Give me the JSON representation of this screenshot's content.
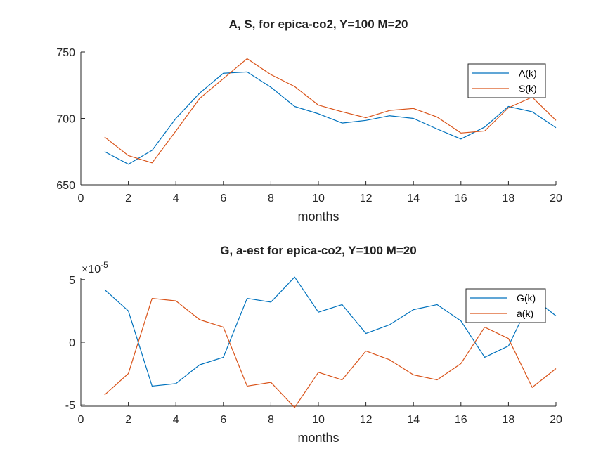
{
  "chart_data": [
    {
      "type": "line",
      "title": "A, S, for epica-co2, Y=100 M=20",
      "xlabel": "months",
      "ylabel": "",
      "xlim": [
        0,
        20
      ],
      "ylim": [
        650,
        750
      ],
      "xticks": [
        0,
        2,
        4,
        6,
        8,
        10,
        12,
        14,
        16,
        18,
        20
      ],
      "yticks": [
        650,
        700,
        750
      ],
      "ytick_labels": [
        "650",
        "700",
        "750"
      ],
      "exponent_label": "",
      "exponent_power": "",
      "grid": false,
      "legend_position": "top-right",
      "x": [
        1,
        2,
        3,
        4,
        5,
        6,
        7,
        8,
        9,
        10,
        11,
        12,
        13,
        14,
        15,
        16,
        17,
        18,
        19,
        20
      ],
      "series": [
        {
          "name": "A(k)",
          "color": "#0072BD",
          "values": [
            675,
            665.5,
            676,
            700,
            719,
            734,
            735,
            723.5,
            709,
            703.5,
            696.5,
            698.5,
            702,
            700,
            692,
            684.5,
            693.5,
            709,
            705,
            693
          ]
        },
        {
          "name": "S(k)",
          "color": "#D95319",
          "values": [
            686,
            672,
            666.5,
            690.5,
            715,
            730,
            745,
            733,
            724,
            710,
            705,
            700.5,
            706,
            707.5,
            701,
            689,
            690.5,
            708,
            716,
            698.5
          ]
        }
      ]
    },
    {
      "type": "line",
      "title": "G, a-est for epica-co2, Y=100 M=20",
      "xlabel": "months",
      "ylabel": "",
      "xlim": [
        0,
        20
      ],
      "ylim": [
        -5.1,
        5.1
      ],
      "xticks": [
        0,
        2,
        4,
        6,
        8,
        10,
        12,
        14,
        16,
        18,
        20
      ],
      "yticks": [
        -5,
        0,
        5
      ],
      "ytick_labels": [
        "-5",
        "0",
        "5"
      ],
      "exponent_label": "×10",
      "exponent_power": "-5",
      "grid": false,
      "legend_position": "top-right",
      "x": [
        1,
        2,
        3,
        4,
        5,
        6,
        7,
        8,
        9,
        10,
        11,
        12,
        13,
        14,
        15,
        16,
        17,
        18,
        19,
        20
      ],
      "series": [
        {
          "name": "G(k)",
          "color": "#0072BD",
          "values": [
            4.2,
            2.5,
            -3.5,
            -3.3,
            -1.8,
            -1.2,
            3.5,
            3.2,
            5.2,
            2.4,
            3.0,
            0.7,
            1.4,
            2.6,
            3.0,
            1.7,
            -1.2,
            -0.3,
            3.6,
            2.1
          ]
        },
        {
          "name": "a(k)",
          "color": "#D95319",
          "values": [
            -4.2,
            -2.5,
            3.5,
            3.3,
            1.8,
            1.2,
            -3.5,
            -3.2,
            -5.2,
            -2.4,
            -3.0,
            -0.7,
            -1.4,
            -2.6,
            -3.0,
            -1.7,
            1.2,
            0.3,
            -3.6,
            -2.1
          ]
        }
      ]
    }
  ]
}
